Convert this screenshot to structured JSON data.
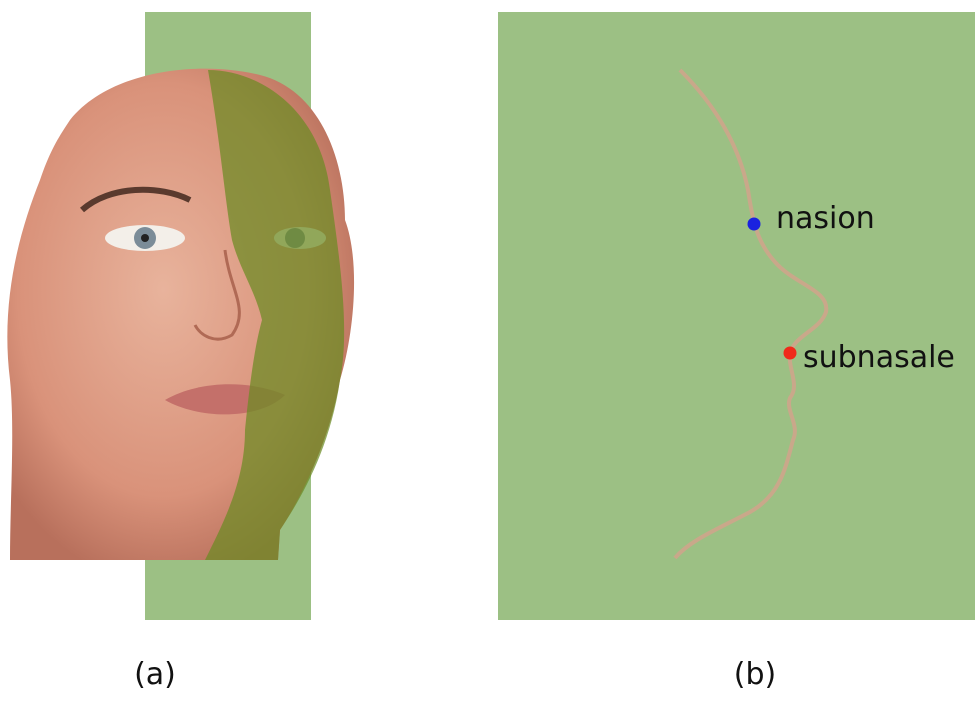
{
  "panels": [
    {
      "label": "(a)"
    },
    {
      "label": "(b)",
      "landmarks": [
        {
          "label": "nasion"
        },
        {
          "label": "subnasale"
        }
      ]
    }
  ]
}
